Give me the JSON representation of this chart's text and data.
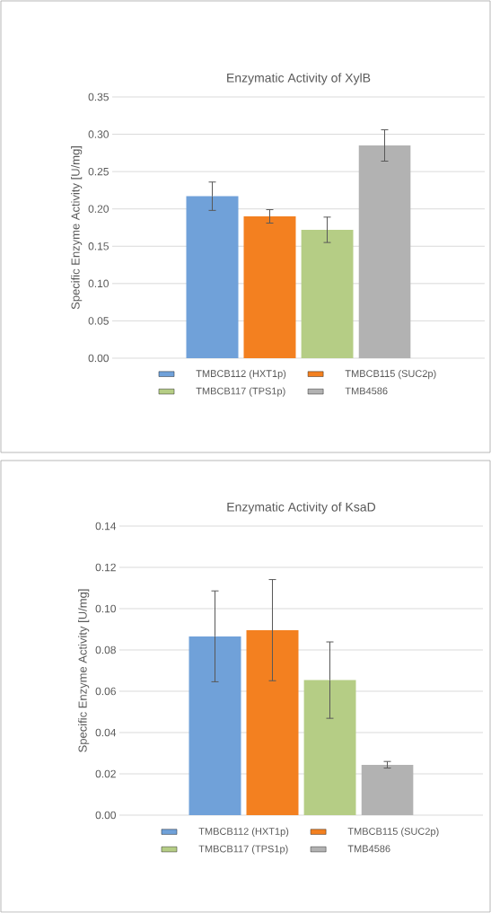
{
  "chart_data": [
    {
      "type": "bar",
      "title": "Enzymatic Activity of XylB",
      "ylabel": "Specific Enzyme Activity [U/mg]",
      "categories": [
        null
      ],
      "series": [
        {
          "name": "TMBCB112 (HXT1p)",
          "color": "#70a1d9",
          "values": [
            0.217
          ],
          "errors": [
            0.019
          ]
        },
        {
          "name": "TMBCB115 (SUC2p)",
          "color": "#f38020",
          "values": [
            0.19
          ],
          "errors": [
            0.009
          ]
        },
        {
          "name": "TMBCB117 (TPS1p)",
          "color": "#b5cd85",
          "values": [
            0.172
          ],
          "errors": [
            0.017
          ]
        },
        {
          "name": "TMB4586",
          "color": "#b2b2b2",
          "values": [
            0.285
          ],
          "errors": [
            0.021
          ]
        }
      ],
      "ylim": [
        0,
        0.35
      ],
      "yticks": [
        {
          "value": 0,
          "label": "0.00"
        },
        {
          "value": 0.05,
          "label": "0.05"
        },
        {
          "value": 0.1,
          "label": "0.10"
        },
        {
          "value": 0.15,
          "label": "0.15"
        },
        {
          "value": 0.2,
          "label": "0.20"
        },
        {
          "value": 0.25,
          "label": "0.25"
        },
        {
          "value": 0.3,
          "label": "0.30"
        },
        {
          "value": 0.35,
          "label": "0.35"
        }
      ],
      "grid": "y",
      "legend": "bottom"
    },
    {
      "type": "bar",
      "title": "Enzymatic Activity of KsaD",
      "ylabel": "Specific Enzyme Activity [U/mg]",
      "categories": [
        null
      ],
      "series": [
        {
          "name": "TMBCB112 (HXT1p)",
          "color": "#70a1d9",
          "values": [
            0.0866
          ],
          "errors": [
            0.022
          ]
        },
        {
          "name": "TMBCB115 (SUC2p)",
          "color": "#f38020",
          "values": [
            0.0896
          ],
          "errors": [
            0.0245
          ]
        },
        {
          "name": "TMBCB117 (TPS1p)",
          "color": "#b5cd85",
          "values": [
            0.0654
          ],
          "errors": [
            0.0185
          ]
        },
        {
          "name": "TMB4586",
          "color": "#b2b2b2",
          "values": [
            0.0244
          ],
          "errors": [
            0.0016
          ]
        }
      ],
      "ylim": [
        0,
        0.14
      ],
      "yticks": [
        {
          "value": 0,
          "label": "0.00"
        },
        {
          "value": 0.02,
          "label": "0.02"
        },
        {
          "value": 0.04,
          "label": "0.04"
        },
        {
          "value": 0.06,
          "label": "0.06"
        },
        {
          "value": 0.08,
          "label": "0.08"
        },
        {
          "value": 0.1,
          "label": "0.10"
        },
        {
          "value": 0.12,
          "label": "0.12"
        },
        {
          "value": 0.14,
          "label": "0.14"
        }
      ],
      "grid": "y",
      "legend": "bottom"
    }
  ]
}
